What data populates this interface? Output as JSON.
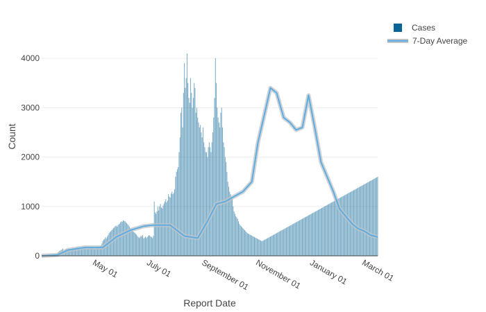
{
  "chart_data": {
    "type": "bar",
    "xlabel": "Report Date",
    "ylabel": "Count",
    "x_start": "2020-03-02",
    "x_end": "2021-03-16",
    "x_ticks": [
      "2020-05-01",
      "2020-07-01",
      "2020-09-01",
      "2020-11-01",
      "2021-01-01",
      "2021-03-01"
    ],
    "x_tick_labels": [
      "May 01",
      "July 01",
      "September 01",
      "November 01",
      "January 01",
      "March 01"
    ],
    "ylim": [
      0,
      4900
    ],
    "y_ticks": [
      0,
      1000,
      2000,
      3000,
      4000
    ],
    "y_tick_labels": [
      "0",
      "1000",
      "2000",
      "3000",
      "4000"
    ],
    "grid": true,
    "legend": "top-right",
    "series": [
      {
        "name": "Cases",
        "type": "bar",
        "color": "#0a6496",
        "values": [
          0,
          0,
          0,
          0,
          0,
          0,
          0,
          0,
          0,
          0,
          0,
          0,
          5,
          8,
          10,
          15,
          25,
          40,
          60,
          80,
          95,
          105,
          120,
          130,
          150,
          90,
          110,
          125,
          140,
          95,
          105,
          115,
          130,
          110,
          120,
          135,
          150,
          125,
          145,
          160,
          175,
          150,
          160,
          170,
          160,
          140,
          155,
          170,
          180,
          165,
          175,
          150,
          145,
          165,
          185,
          175,
          160,
          170,
          180,
          150,
          145,
          165,
          185,
          175,
          165,
          155,
          200,
          210,
          250,
          300,
          330,
          340,
          380,
          350,
          390,
          420,
          460,
          480,
          500,
          520,
          540,
          560,
          580,
          600,
          610,
          590,
          620,
          640,
          650,
          680,
          700,
          690,
          720,
          710,
          700,
          680,
          660,
          640,
          620,
          590,
          560,
          540,
          520,
          500,
          480,
          470,
          450,
          430,
          400,
          380,
          360,
          380,
          410,
          390,
          420,
          350,
          370,
          390,
          360,
          380,
          400,
          420,
          410,
          390,
          380,
          360,
          400,
          1100,
          880,
          850,
          900,
          1000,
          920,
          1000,
          1050,
          980,
          960,
          1020,
          1060,
          1100,
          1150,
          1080,
          1120,
          1250,
          1200,
          1180,
          1260,
          1300,
          1250,
          1280,
          1350,
          1600,
          1700,
          1750,
          1800,
          2100,
          2400,
          2900,
          3000,
          2600,
          3300,
          3900,
          3400,
          3600,
          4100,
          3500,
          3200,
          3100,
          3600,
          3300,
          3000,
          3200,
          3500,
          3400,
          2900,
          3000,
          2800,
          2700,
          2600,
          2650,
          2500,
          2400,
          2600,
          2300,
          2200,
          2100,
          2100,
          2000,
          2200,
          2300,
          2200,
          2100,
          2300,
          2500,
          2800,
          3200,
          4000,
          3500,
          3000,
          2800,
          2700,
          2600,
          2900,
          3000,
          2600,
          2300,
          2200,
          2000,
          1900,
          1700,
          1500,
          1400,
          1300,
          1250,
          1200,
          1150,
          1000,
          900,
          850,
          800,
          780,
          750,
          700,
          650,
          620,
          600,
          580,
          560,
          540,
          520,
          500,
          480,
          460,
          450,
          440,
          430,
          420,
          410,
          400,
          390,
          380,
          370,
          360,
          350,
          340,
          330,
          320,
          310,
          300,
          300,
          310,
          320,
          330,
          340,
          350,
          360,
          370,
          380,
          390,
          400,
          410,
          420,
          430,
          440,
          450,
          460,
          470,
          480,
          490,
          500,
          510,
          520,
          530,
          540,
          550,
          560,
          570,
          580,
          590,
          600,
          610,
          620,
          630,
          640,
          650,
          660,
          670,
          680,
          690,
          700,
          710,
          720,
          730,
          740,
          750,
          760,
          770,
          780,
          790,
          800,
          810,
          820,
          830,
          840,
          850,
          860,
          870,
          880,
          890,
          900,
          910,
          920,
          930,
          940,
          950,
          960,
          970,
          980,
          990,
          1000,
          1010,
          1020,
          1030,
          1040,
          1050,
          1060,
          1070,
          1080,
          1090,
          1100,
          1110,
          1120,
          1130,
          1140,
          1150,
          1160,
          1170,
          1180,
          1190,
          1200,
          1210,
          1220,
          1230,
          1240,
          1250,
          1260,
          1270,
          1280,
          1290,
          1300,
          1310,
          1320,
          1330,
          1340,
          1350,
          1360,
          1370,
          1380,
          1390,
          1400,
          1410,
          1420,
          1430,
          1440,
          1450,
          1460,
          1470,
          1480,
          1490,
          1500,
          1510,
          1520,
          1530,
          1540,
          1550,
          1560,
          1570,
          1580,
          1590,
          1600,
          1610,
          1620,
          1630,
          1640,
          1650,
          1660,
          1670,
          1680,
          1690,
          1700,
          1710,
          1720,
          1730,
          1740,
          1750,
          1760,
          1770,
          1780,
          1790,
          1800
        ]
      },
      {
        "name": "7-Day Average",
        "type": "line",
        "color": "#5dade2",
        "band_color": "#c0c4c8",
        "x": [
          "2020-03-02",
          "2020-03-20",
          "2020-04-01",
          "2020-04-20",
          "2020-05-10",
          "2020-05-25",
          "2020-06-10",
          "2020-06-25",
          "2020-07-05",
          "2020-07-25",
          "2020-08-10",
          "2020-08-25",
          "2020-09-05",
          "2020-09-15",
          "2020-09-25",
          "2020-10-05",
          "2020-10-15",
          "2020-10-25",
          "2020-11-01",
          "2020-11-10",
          "2020-11-15",
          "2020-11-22",
          "2020-11-30",
          "2020-12-07",
          "2020-12-14",
          "2020-12-21",
          "2020-12-28",
          "2021-01-04",
          "2021-01-11",
          "2021-01-18",
          "2021-01-25",
          "2021-02-01",
          "2021-02-08",
          "2021-02-15",
          "2021-02-22",
          "2021-03-01",
          "2021-03-08",
          "2021-03-16"
        ],
        "values": [
          0,
          20,
          120,
          170,
          170,
          380,
          520,
          600,
          620,
          620,
          400,
          360,
          700,
          1050,
          1100,
          1200,
          1300,
          1500,
          2300,
          3000,
          3400,
          3300,
          2800,
          2700,
          2550,
          2600,
          3250,
          2600,
          1900,
          1600,
          1300,
          950,
          800,
          650,
          550,
          500,
          420,
          380
        ]
      }
    ]
  }
}
